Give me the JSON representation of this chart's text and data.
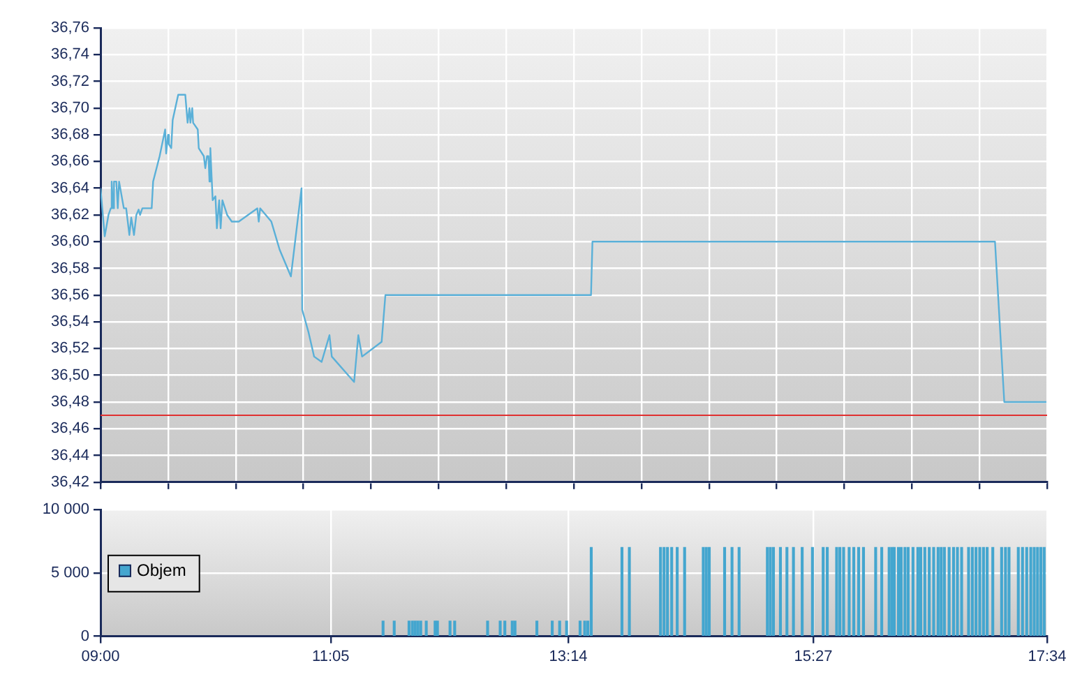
{
  "chart_data": [
    {
      "type": "line",
      "tick_labels": "y",
      "grid": true,
      "xlim": [
        9,
        17.5667
      ],
      "xticks": [
        {
          "value": 9,
          "label": null
        },
        {
          "value": 9.6119,
          "label": null
        },
        {
          "value": 10.2238,
          "label": null
        },
        {
          "value": 10.8357,
          "label": null
        },
        {
          "value": 11.4476,
          "label": null
        },
        {
          "value": 12.0595,
          "label": null
        },
        {
          "value": 12.6714,
          "label": null
        },
        {
          "value": 13.2833,
          "label": null
        },
        {
          "value": 13.8952,
          "label": null
        },
        {
          "value": 14.5071,
          "label": null
        },
        {
          "value": 15.119,
          "label": null
        },
        {
          "value": 15.7309,
          "label": null
        },
        {
          "value": 16.3428,
          "label": null
        },
        {
          "value": 16.9547,
          "label": null
        },
        {
          "value": 17.5667,
          "label": null
        }
      ],
      "ylim": [
        36.42,
        36.76
      ],
      "yticks": [
        {
          "value": 36.42,
          "label": "36,42"
        },
        {
          "value": 36.44,
          "label": "36,44"
        },
        {
          "value": 36.46,
          "label": "36,46"
        },
        {
          "value": 36.48,
          "label": "36,48"
        },
        {
          "value": 36.5,
          "label": "36,50"
        },
        {
          "value": 36.52,
          "label": "36,52"
        },
        {
          "value": 36.54,
          "label": "36,54"
        },
        {
          "value": 36.56,
          "label": "36,56"
        },
        {
          "value": 36.58,
          "label": "36,58"
        },
        {
          "value": 36.6,
          "label": "36,60"
        },
        {
          "value": 36.62,
          "label": "36,62"
        },
        {
          "value": 36.64,
          "label": "36,64"
        },
        {
          "value": 36.66,
          "label": "36,66"
        },
        {
          "value": 36.68,
          "label": "36,68"
        },
        {
          "value": 36.7,
          "label": "36,70"
        },
        {
          "value": 36.72,
          "label": "36,72"
        },
        {
          "value": 36.74,
          "label": "36,74"
        },
        {
          "value": 36.76,
          "label": "36,76"
        }
      ],
      "ref_lines": [
        {
          "axis": "y",
          "value": 36.47,
          "color": "#e03030"
        }
      ],
      "series": [
        {
          "color": "#5ab0d8",
          "x": [
            9,
            9.038,
            9.072,
            9.093,
            9.101,
            9.114,
            9.122,
            9.143,
            9.156,
            9.168,
            9.198,
            9.211,
            9.232,
            9.261,
            9.278,
            9.303,
            9.324,
            9.345,
            9.358,
            9.379,
            9.463,
            9.476,
            9.535,
            9.585,
            9.594,
            9.611,
            9.619,
            9.64,
            9.653,
            9.703,
            9.767,
            9.788,
            9.805,
            9.813,
            9.83,
            9.838,
            9.88,
            9.889,
            9.935,
            9.948,
            9.964,
            9.977,
            9.986,
            9.994,
            10.015,
            10.04,
            10.053,
            10.074,
            10.087,
            10.103,
            10.146,
            10.188,
            10.251,
            10.419,
            10.432,
            10.445,
            10.546,
            10.621,
            10.723,
            10.819,
            10.825,
            10.849,
            10.883,
            10.933,
            11.001,
            11.072,
            11.093,
            11.295,
            11.333,
            11.367,
            11.544,
            11.578,
            13.439,
            13.452,
            17.095,
            17.179,
            17.56
          ],
          "values": [
            36.64,
            36.604,
            36.62,
            36.625,
            36.645,
            36.625,
            36.645,
            36.645,
            36.625,
            36.645,
            36.631,
            36.625,
            36.625,
            36.605,
            36.618,
            36.605,
            36.62,
            36.624,
            36.62,
            36.625,
            36.625,
            36.645,
            36.664,
            36.684,
            36.666,
            36.68,
            36.673,
            36.67,
            36.691,
            36.71,
            36.71,
            36.689,
            36.7,
            36.689,
            36.7,
            36.689,
            36.684,
            36.67,
            36.664,
            36.655,
            36.664,
            36.664,
            36.645,
            36.67,
            36.631,
            36.634,
            36.61,
            36.631,
            36.61,
            36.631,
            36.62,
            36.615,
            36.615,
            36.625,
            36.615,
            36.625,
            36.615,
            36.594,
            36.574,
            36.64,
            36.549,
            36.542,
            36.532,
            36.514,
            36.51,
            36.53,
            36.514,
            36.495,
            36.53,
            36.514,
            36.525,
            36.56,
            36.56,
            36.6,
            36.6,
            36.48,
            36.48
          ]
        }
      ]
    },
    {
      "type": "bar",
      "grid": true,
      "legend": "left",
      "xlim": [
        9,
        17.5667
      ],
      "xticks": [
        {
          "value": 9,
          "label": "09:00"
        },
        {
          "value": 11.0833,
          "label": "11:05"
        },
        {
          "value": 13.2333,
          "label": "13:14"
        },
        {
          "value": 15.45,
          "label": "15:27"
        },
        {
          "value": 17.5667,
          "label": "17:34"
        }
      ],
      "ylim": [
        0,
        10000
      ],
      "yticks": [
        {
          "value": 0,
          "label": "0"
        },
        {
          "value": 5000,
          "label": "5 000"
        },
        {
          "value": 10000,
          "label": "10 000"
        }
      ],
      "series": [
        {
          "name": "Objem",
          "color": "#44a6cf",
          "x": [
            11.557,
            11.658,
            11.792,
            11.822,
            11.847,
            11.872,
            11.898,
            11.948,
            12.028,
            12.049,
            12.163,
            12.205,
            12.503,
            12.617,
            12.659,
            12.726,
            12.751,
            12.949,
            13.088,
            13.155,
            13.218,
            13.34,
            13.382,
            13.41,
            13.441,
            13.719,
            13.786,
            14.068,
            14.1,
            14.131,
            14.169,
            14.219,
            14.286,
            14.455,
            14.482,
            14.509,
            14.648,
            14.715,
            14.779,
            15.035,
            15.062,
            15.09,
            15.153,
            15.212,
            15.271,
            15.35,
            15.443,
            15.54,
            15.577,
            15.662,
            15.691,
            15.725,
            15.775,
            15.817,
            15.861,
            15.905,
            16.015,
            16.07,
            16.137,
            16.162,
            16.183,
            16.221,
            16.246,
            16.28,
            16.309,
            16.353,
            16.397,
            16.423,
            16.46,
            16.5,
            16.54,
            16.58,
            16.608,
            16.637,
            16.68,
            16.72,
            16.755,
            16.793,
            16.856,
            16.89,
            16.923,
            16.957,
            16.991,
            17.024,
            17.075,
            17.155,
            17.19,
            17.222,
            17.306,
            17.344,
            17.382,
            17.419,
            17.45,
            17.48,
            17.51,
            17.54
          ],
          "values": [
            1200,
            1200,
            1200,
            1200,
            1200,
            1200,
            1200,
            1200,
            1200,
            1200,
            1200,
            1200,
            1200,
            1200,
            1200,
            1200,
            1200,
            1200,
            1200,
            1200,
            1200,
            1200,
            1200,
            1200,
            7000,
            7000,
            7000,
            7000,
            7000,
            7000,
            7000,
            7000,
            7000,
            7000,
            7000,
            7000,
            7000,
            7000,
            7000,
            7000,
            7000,
            7000,
            7000,
            7000,
            7000,
            7000,
            7000,
            7000,
            7000,
            7000,
            7000,
            7000,
            7000,
            7000,
            7000,
            7000,
            7000,
            7000,
            7000,
            7000,
            7000,
            7000,
            7000,
            7000,
            7000,
            7000,
            7000,
            7000,
            7000,
            7000,
            7000,
            7000,
            7000,
            7000,
            7000,
            7000,
            7000,
            7000,
            7000,
            7000,
            7000,
            7000,
            7000,
            7000,
            7000,
            7000,
            7000,
            7000,
            7000,
            7000,
            7000,
            7000,
            7000,
            7000,
            7000,
            7000
          ]
        }
      ]
    }
  ]
}
